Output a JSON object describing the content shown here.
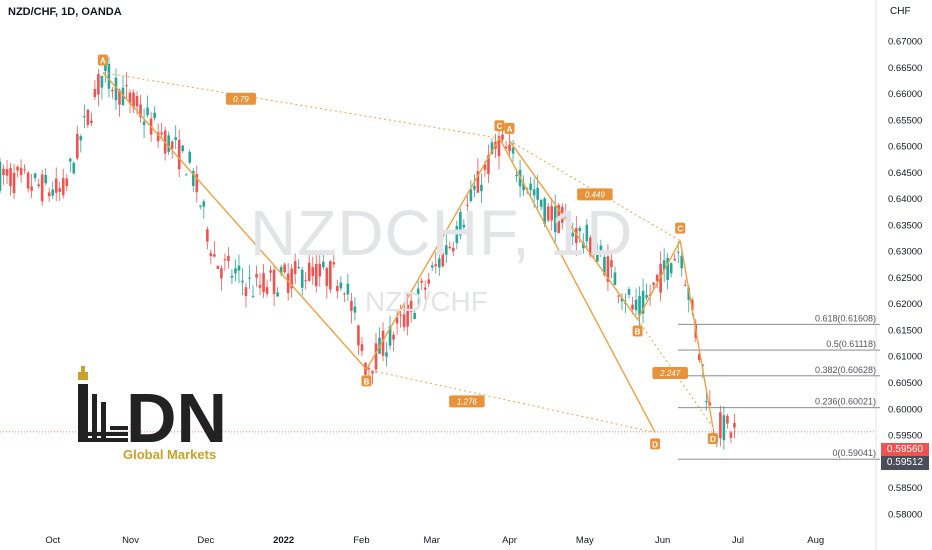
{
  "header": {
    "title": "NZD/CHF, 1D, OANDA",
    "currency": "CHF"
  },
  "watermark": {
    "symbol": "NZDCHF, 1D",
    "subtitle": "NZD/CHF"
  },
  "logo": {
    "letters": "DN",
    "tagline": "Global Markets"
  },
  "colors": {
    "up": "#26a69a",
    "down": "#ef5350",
    "pattern": "#f0a040",
    "accent": "#e8933a"
  },
  "chart_data": {
    "type": "candlestick",
    "x_ticks": [
      "Oct",
      "Nov",
      "Dec",
      "2022",
      "Feb",
      "Mar",
      "Apr",
      "May",
      "Jun",
      "Jul",
      "Aug"
    ],
    "y_ticks": [
      "0.67000",
      "0.66500",
      "0.66000",
      "0.65500",
      "0.65000",
      "0.64500",
      "0.64000",
      "0.63500",
      "0.63000",
      "0.62500",
      "0.62000",
      "0.61500",
      "0.61000",
      "0.60500",
      "0.60000",
      "0.59500",
      "0.59000",
      "0.58500",
      "0.58000"
    ],
    "ylim": [
      0.5775,
      0.674
    ],
    "last_price": "0.59560",
    "second_price": "0.59512",
    "pattern_points": [
      {
        "label": "A",
        "date": "2021-10-21",
        "price": 0.664
      },
      {
        "label": "B",
        "date": "2022-02-03",
        "price": 0.6075
      },
      {
        "label": "C",
        "date": "2022-03-28",
        "price": 0.6515
      },
      {
        "label": "D",
        "date": "2022-05-29",
        "price": 0.5955
      },
      {
        "label": "A",
        "date": "2022-04-01",
        "price": 0.651
      },
      {
        "label": "B",
        "date": "2022-05-22",
        "price": 0.617
      },
      {
        "label": "C",
        "date": "2022-06-08",
        "price": 0.632
      },
      {
        "label": "D",
        "date": "2022-06-21",
        "price": 0.5965
      }
    ],
    "ratios": [
      {
        "text": "0.79",
        "date": "2021-12-15",
        "price": 0.659
      },
      {
        "text": "1.276",
        "date": "2022-03-15",
        "price": 0.6014
      },
      {
        "text": "0.449",
        "date": "2022-05-05",
        "price": 0.6408
      },
      {
        "text": "2.247",
        "date": "2022-06-04",
        "price": 0.6068
      }
    ],
    "fib_levels": [
      {
        "label": "0.618(0.61608)",
        "price": 0.61608
      },
      {
        "label": "0.5(0.61118)",
        "price": 0.61118
      },
      {
        "label": "0.382(0.60628)",
        "price": 0.60628
      },
      {
        "label": "0.236(0.60021)",
        "price": 0.60021
      },
      {
        "label": "0(0.59041)",
        "price": 0.59041
      }
    ]
  }
}
